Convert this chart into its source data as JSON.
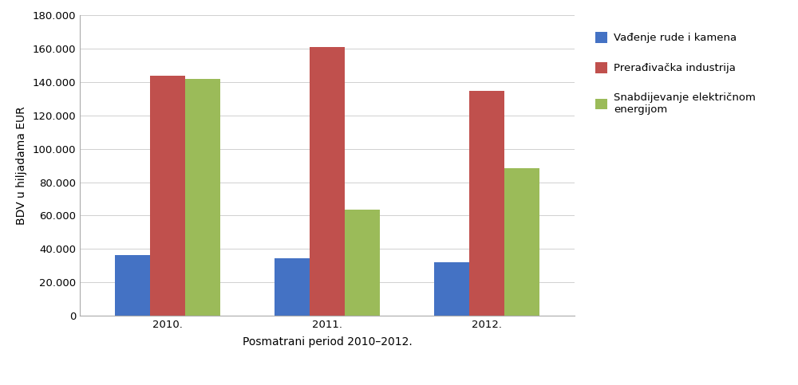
{
  "years": [
    "2010.",
    "2011.",
    "2012."
  ],
  "series": [
    {
      "label": "Vađenje rude i kamena",
      "color": "#4472C4",
      "values": [
        36500,
        34500,
        32000
      ]
    },
    {
      "label": "Prerađivačka industrija",
      "color": "#C0504D",
      "values": [
        144000,
        161000,
        135000
      ]
    },
    {
      "label": "Snabdijevanje električnom\nenergijom",
      "color": "#9BBB59",
      "values": [
        142000,
        63500,
        88500
      ]
    }
  ],
  "ylabel": "BDV u hiljadama EUR",
  "xlabel": "Posmatrani period 2010–2012.",
  "ylim": [
    0,
    180000
  ],
  "yticks": [
    0,
    20000,
    40000,
    60000,
    80000,
    100000,
    120000,
    140000,
    160000,
    180000
  ],
  "ytick_labels": [
    "0",
    "20.000",
    "40.000",
    "60.000",
    "80.000",
    "100.000",
    "120.000",
    "140.000",
    "160.000",
    "180.000"
  ],
  "background_color": "#ffffff",
  "grid_color": "#d0d0d0",
  "bar_width": 0.22,
  "legend_fontsize": 9.5,
  "axis_fontsize": 10,
  "tick_fontsize": 9.5,
  "figure_width": 10.0,
  "figure_height": 4.83
}
